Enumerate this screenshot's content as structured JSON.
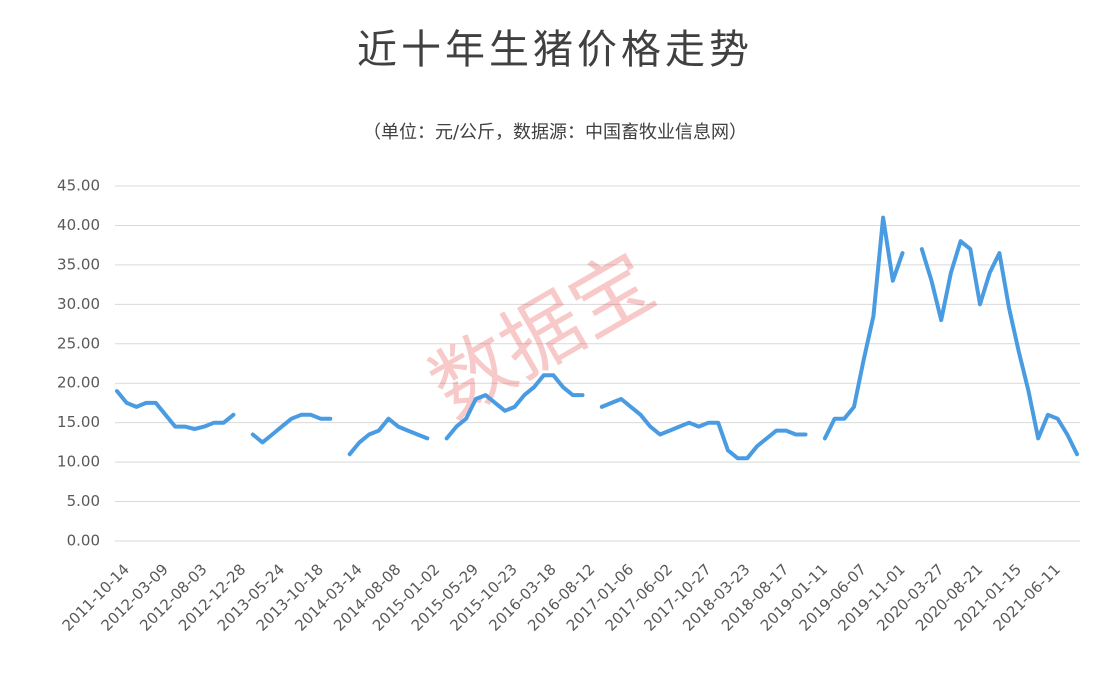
{
  "chart_data": {
    "type": "line",
    "title": "近十年生猪价格走势",
    "subtitle": "（单位：元/公斤，数据源：中国畜牧业信息网）",
    "watermark": "数据宝",
    "color": "#4a9ce2",
    "grid": true,
    "ylim": [
      0,
      45
    ],
    "yticks": [
      {
        "value": 0,
        "label": "0.00"
      },
      {
        "value": 5,
        "label": "5.00"
      },
      {
        "value": 10,
        "label": "10.00"
      },
      {
        "value": 15,
        "label": "15.00"
      },
      {
        "value": 20,
        "label": "20.00"
      },
      {
        "value": 25,
        "label": "25.00"
      },
      {
        "value": 30,
        "label": "30.00"
      },
      {
        "value": 35,
        "label": "35.00"
      },
      {
        "value": 40,
        "label": "40.00"
      },
      {
        "value": 45,
        "label": "45.00"
      }
    ],
    "categories": [
      "2011-10-14",
      null,
      null,
      null,
      "2012-03-09",
      null,
      null,
      null,
      "2012-08-03",
      null,
      null,
      null,
      "2012-12-28",
      null,
      null,
      null,
      "2013-05-24",
      null,
      null,
      null,
      "2013-10-18",
      null,
      null,
      null,
      "2014-03-14",
      null,
      null,
      null,
      "2014-08-08",
      null,
      null,
      null,
      "2015-01-02",
      null,
      null,
      null,
      "2015-05-29",
      null,
      null,
      null,
      "2015-10-23",
      null,
      null,
      null,
      "2016-03-18",
      null,
      null,
      null,
      "2016-08-12",
      null,
      null,
      null,
      "2017-01-06",
      null,
      null,
      null,
      "2017-06-02",
      null,
      null,
      null,
      "2017-10-27",
      null,
      null,
      null,
      "2018-03-23",
      null,
      null,
      null,
      "2018-08-17",
      null,
      null,
      null,
      "2019-01-11",
      null,
      null,
      null,
      "2019-06-07",
      null,
      null,
      null,
      "2019-11-01",
      null,
      null,
      null,
      "2020-03-27",
      null,
      null,
      null,
      "2020-08-21",
      null,
      null,
      null,
      "2021-01-15",
      null,
      null,
      null,
      "2021-06-11",
      null,
      null,
      null
    ],
    "values": [
      19,
      17.5,
      17,
      17.5,
      17.5,
      16,
      14.5,
      14.5,
      14.2,
      14.5,
      15,
      15,
      16,
      null,
      13.5,
      12.5,
      13.5,
      14.5,
      15.5,
      16,
      16,
      15.5,
      15.5,
      null,
      11,
      12.5,
      13.5,
      14,
      15.5,
      14.5,
      14,
      13.5,
      13,
      null,
      13,
      14.5,
      15.5,
      18,
      18.5,
      17.5,
      16.5,
      17,
      18.5,
      19.5,
      21,
      21,
      19.5,
      18.5,
      18.5,
      null,
      17,
      17.5,
      18,
      17,
      16,
      14.5,
      13.5,
      14,
      14.5,
      15,
      14.5,
      15,
      15,
      11.5,
      10.5,
      10.5,
      12,
      13,
      14,
      14,
      13.5,
      13.5,
      null,
      13,
      15.5,
      15.5,
      17,
      23,
      28.5,
      41,
      33,
      36.5,
      null,
      37,
      33,
      28,
      34,
      38,
      37,
      30,
      34,
      36.5,
      29.5,
      24,
      19,
      13,
      16,
      15.5,
      13.5,
      11
    ]
  }
}
